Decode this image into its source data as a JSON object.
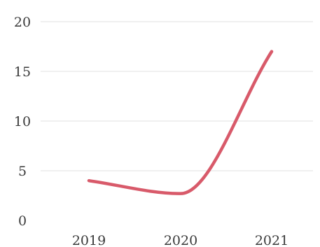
{
  "chart_data": {
    "type": "line",
    "title": "",
    "xlabel": "",
    "ylabel": "",
    "categories": [
      "2019",
      "2020",
      "2021"
    ],
    "x": [
      2019,
      2020,
      2021
    ],
    "y_ticks": [
      "0",
      "5",
      "10",
      "15",
      "20"
    ],
    "ylim": [
      0,
      20
    ],
    "grid": true,
    "legend": "none",
    "series": [
      {
        "values": [
          4,
          2.7,
          17
        ],
        "color": "#d85a6a",
        "smooth": true
      }
    ]
  }
}
